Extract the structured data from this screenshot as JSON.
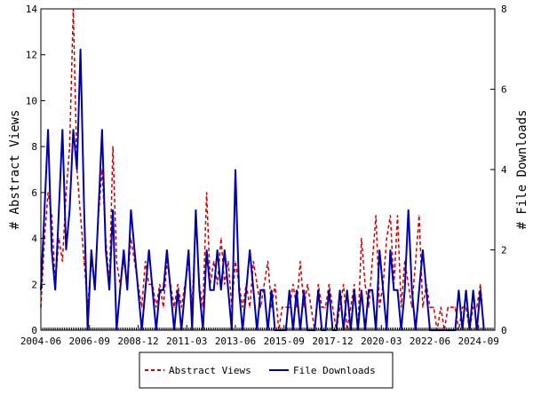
{
  "chart_data": {
    "type": "line",
    "title": "",
    "ylabel": "# Abstract Views",
    "y2label": "# File Downloads",
    "ylim": [
      0,
      14
    ],
    "y2lim": [
      0,
      8
    ],
    "xlim": [
      "2004-06",
      "2025-06"
    ],
    "grid": false,
    "legend_position": "bottom",
    "x_tick_labels": [
      "2004-06",
      "2006-09",
      "2008-12",
      "2011-03",
      "2013-06",
      "2015-09",
      "2017-12",
      "2020-03",
      "2022-06",
      "2024-09"
    ],
    "y_tick_labels": [
      "0",
      "2",
      "4",
      "6",
      "8",
      "10",
      "12",
      "14"
    ],
    "y2_tick_labels": [
      "0",
      "2",
      "4",
      "6",
      "8"
    ],
    "series": [
      {
        "name": "Abstract Views",
        "axis": "left",
        "color": "#cc0000",
        "style": "dashed",
        "points": [
          [
            "2004-06",
            1
          ],
          [
            "2004-08",
            4
          ],
          [
            "2004-10",
            6
          ],
          [
            "2004-12",
            5
          ],
          [
            "2005-02",
            2
          ],
          [
            "2005-04",
            4
          ],
          [
            "2005-06",
            3
          ],
          [
            "2005-08",
            6
          ],
          [
            "2005-10",
            8
          ],
          [
            "2005-12",
            14
          ],
          [
            "2006-02",
            7
          ],
          [
            "2006-04",
            5
          ],
          [
            "2006-06",
            3
          ],
          [
            "2006-08",
            1
          ],
          [
            "2006-10",
            3
          ],
          [
            "2006-12",
            2
          ],
          [
            "2007-02",
            5
          ],
          [
            "2007-04",
            7
          ],
          [
            "2007-06",
            4
          ],
          [
            "2007-08",
            2
          ],
          [
            "2007-10",
            8
          ],
          [
            "2007-12",
            3
          ],
          [
            "2008-02",
            2
          ],
          [
            "2008-04",
            3
          ],
          [
            "2008-06",
            2
          ],
          [
            "2008-08",
            4
          ],
          [
            "2008-10",
            3
          ],
          [
            "2008-12",
            2
          ],
          [
            "2009-02",
            1
          ],
          [
            "2009-04",
            3
          ],
          [
            "2009-06",
            2
          ],
          [
            "2009-08",
            2
          ],
          [
            "2009-10",
            1
          ],
          [
            "2009-12",
            2
          ],
          [
            "2010-02",
            1
          ],
          [
            "2010-04",
            3
          ],
          [
            "2010-06",
            2
          ],
          [
            "2010-08",
            1
          ],
          [
            "2010-10",
            2
          ],
          [
            "2010-12",
            1
          ],
          [
            "2011-02",
            2
          ],
          [
            "2011-04",
            3
          ],
          [
            "2011-06",
            1
          ],
          [
            "2011-08",
            5
          ],
          [
            "2011-10",
            2
          ],
          [
            "2011-12",
            1
          ],
          [
            "2012-02",
            6
          ],
          [
            "2012-04",
            2
          ],
          [
            "2012-06",
            3
          ],
          [
            "2012-08",
            2
          ],
          [
            "2012-10",
            4
          ],
          [
            "2012-12",
            2
          ],
          [
            "2013-02",
            3
          ],
          [
            "2013-04",
            1
          ],
          [
            "2013-06",
            3
          ],
          [
            "2013-08",
            2
          ],
          [
            "2013-10",
            1
          ],
          [
            "2013-12",
            2
          ],
          [
            "2014-02",
            1
          ],
          [
            "2014-04",
            3
          ],
          [
            "2014-06",
            2
          ],
          [
            "2014-08",
            1
          ],
          [
            "2014-10",
            2
          ],
          [
            "2014-12",
            3
          ],
          [
            "2015-02",
            1
          ],
          [
            "2015-04",
            2
          ],
          [
            "2015-06",
            0
          ],
          [
            "2015-08",
            1
          ],
          [
            "2015-10",
            1
          ],
          [
            "2015-12",
            1
          ],
          [
            "2016-02",
            2
          ],
          [
            "2016-04",
            1
          ],
          [
            "2016-06",
            3
          ],
          [
            "2016-08",
            1
          ],
          [
            "2016-10",
            2
          ],
          [
            "2016-12",
            1
          ],
          [
            "2017-02",
            0
          ],
          [
            "2017-04",
            2
          ],
          [
            "2017-06",
            1
          ],
          [
            "2017-08",
            1
          ],
          [
            "2017-10",
            2
          ],
          [
            "2017-12",
            1
          ],
          [
            "2018-02",
            0
          ],
          [
            "2018-04",
            1
          ],
          [
            "2018-06",
            2
          ],
          [
            "2018-08",
            0
          ],
          [
            "2018-10",
            1
          ],
          [
            "2018-12",
            2
          ],
          [
            "2019-02",
            0
          ],
          [
            "2019-04",
            4
          ],
          [
            "2019-06",
            2
          ],
          [
            "2019-08",
            1
          ],
          [
            "2019-10",
            3
          ],
          [
            "2019-12",
            5
          ],
          [
            "2020-02",
            1
          ],
          [
            "2020-04",
            2
          ],
          [
            "2020-06",
            4
          ],
          [
            "2020-08",
            5
          ],
          [
            "2020-10",
            2
          ],
          [
            "2020-12",
            5
          ],
          [
            "2021-02",
            1
          ],
          [
            "2021-04",
            3
          ],
          [
            "2021-06",
            2
          ],
          [
            "2021-08",
            1
          ],
          [
            "2021-10",
            3
          ],
          [
            "2021-12",
            5
          ],
          [
            "2022-02",
            1
          ],
          [
            "2022-04",
            2
          ],
          [
            "2022-06",
            1
          ],
          [
            "2022-08",
            1
          ],
          [
            "2022-10",
            0
          ],
          [
            "2022-12",
            1
          ],
          [
            "2023-02",
            0
          ],
          [
            "2023-04",
            1
          ],
          [
            "2023-06",
            1
          ],
          [
            "2023-08",
            1
          ],
          [
            "2023-10",
            0
          ],
          [
            "2023-12",
            1
          ],
          [
            "2024-02",
            1
          ],
          [
            "2024-04",
            0
          ],
          [
            "2024-06",
            1
          ],
          [
            "2024-08",
            1
          ],
          [
            "2024-10",
            2
          ],
          [
            "2024-12",
            0
          ]
        ]
      },
      {
        "name": "File Downloads",
        "axis": "right",
        "color": "#0000aa",
        "style": "solid",
        "points": [
          [
            "2004-06",
            1
          ],
          [
            "2004-08",
            3
          ],
          [
            "2004-10",
            5
          ],
          [
            "2004-12",
            2
          ],
          [
            "2005-02",
            1
          ],
          [
            "2005-04",
            3
          ],
          [
            "2005-06",
            5
          ],
          [
            "2005-08",
            2
          ],
          [
            "2005-10",
            3
          ],
          [
            "2005-12",
            5
          ],
          [
            "2006-02",
            4
          ],
          [
            "2006-04",
            7
          ],
          [
            "2006-06",
            3
          ],
          [
            "2006-08",
            0
          ],
          [
            "2006-10",
            2
          ],
          [
            "2006-12",
            1
          ],
          [
            "2007-02",
            3
          ],
          [
            "2007-04",
            5
          ],
          [
            "2007-06",
            2
          ],
          [
            "2007-08",
            1
          ],
          [
            "2007-10",
            3
          ],
          [
            "2007-12",
            0
          ],
          [
            "2008-02",
            1
          ],
          [
            "2008-04",
            2
          ],
          [
            "2008-06",
            1
          ],
          [
            "2008-08",
            3
          ],
          [
            "2008-10",
            2
          ],
          [
            "2008-12",
            1
          ],
          [
            "2009-02",
            0
          ],
          [
            "2009-04",
            1
          ],
          [
            "2009-06",
            2
          ],
          [
            "2009-08",
            1
          ],
          [
            "2009-10",
            0
          ],
          [
            "2009-12",
            1
          ],
          [
            "2010-02",
            1
          ],
          [
            "2010-04",
            2
          ],
          [
            "2010-06",
            1
          ],
          [
            "2010-08",
            0
          ],
          [
            "2010-10",
            1
          ],
          [
            "2010-12",
            0
          ],
          [
            "2011-02",
            1
          ],
          [
            "2011-04",
            2
          ],
          [
            "2011-06",
            0
          ],
          [
            "2011-08",
            3
          ],
          [
            "2011-10",
            1
          ],
          [
            "2011-12",
            0
          ],
          [
            "2012-02",
            2
          ],
          [
            "2012-04",
            1
          ],
          [
            "2012-06",
            1
          ],
          [
            "2012-08",
            2
          ],
          [
            "2012-10",
            1
          ],
          [
            "2012-12",
            2
          ],
          [
            "2013-02",
            1
          ],
          [
            "2013-04",
            0
          ],
          [
            "2013-06",
            4
          ],
          [
            "2013-08",
            1
          ],
          [
            "2013-10",
            0
          ],
          [
            "2013-12",
            1
          ],
          [
            "2014-02",
            2
          ],
          [
            "2014-04",
            1
          ],
          [
            "2014-06",
            0
          ],
          [
            "2014-08",
            1
          ],
          [
            "2014-10",
            1
          ],
          [
            "2014-12",
            0
          ],
          [
            "2015-02",
            1
          ],
          [
            "2015-04",
            0
          ],
          [
            "2015-06",
            0
          ],
          [
            "2015-08",
            0
          ],
          [
            "2015-10",
            0
          ],
          [
            "2015-12",
            1
          ],
          [
            "2016-02",
            0
          ],
          [
            "2016-04",
            1
          ],
          [
            "2016-06",
            0
          ],
          [
            "2016-08",
            1
          ],
          [
            "2016-10",
            0
          ],
          [
            "2016-12",
            0
          ],
          [
            "2017-02",
            0
          ],
          [
            "2017-04",
            1
          ],
          [
            "2017-06",
            0
          ],
          [
            "2017-08",
            0
          ],
          [
            "2017-10",
            1
          ],
          [
            "2017-12",
            0
          ],
          [
            "2018-02",
            0
          ],
          [
            "2018-04",
            1
          ],
          [
            "2018-06",
            0
          ],
          [
            "2018-08",
            1
          ],
          [
            "2018-10",
            0
          ],
          [
            "2018-12",
            1
          ],
          [
            "2019-02",
            0
          ],
          [
            "2019-04",
            1
          ],
          [
            "2019-06",
            0
          ],
          [
            "2019-08",
            1
          ],
          [
            "2019-10",
            1
          ],
          [
            "2019-12",
            0
          ],
          [
            "2020-02",
            2
          ],
          [
            "2020-04",
            1
          ],
          [
            "2020-06",
            0
          ],
          [
            "2020-08",
            2
          ],
          [
            "2020-10",
            1
          ],
          [
            "2020-12",
            1
          ],
          [
            "2021-02",
            0
          ],
          [
            "2021-04",
            1
          ],
          [
            "2021-06",
            3
          ],
          [
            "2021-08",
            1
          ],
          [
            "2021-10",
            0
          ],
          [
            "2021-12",
            1
          ],
          [
            "2022-02",
            2
          ],
          [
            "2022-04",
            1
          ],
          [
            "2022-06",
            0
          ],
          [
            "2022-08",
            0
          ],
          [
            "2022-10",
            0
          ],
          [
            "2022-12",
            0
          ],
          [
            "2023-02",
            0
          ],
          [
            "2023-04",
            0
          ],
          [
            "2023-06",
            0
          ],
          [
            "2023-08",
            0
          ],
          [
            "2023-10",
            1
          ],
          [
            "2023-12",
            0
          ],
          [
            "2024-02",
            1
          ],
          [
            "2024-04",
            0
          ],
          [
            "2024-06",
            1
          ],
          [
            "2024-08",
            0
          ],
          [
            "2024-10",
            1
          ],
          [
            "2024-12",
            0
          ]
        ]
      }
    ]
  }
}
